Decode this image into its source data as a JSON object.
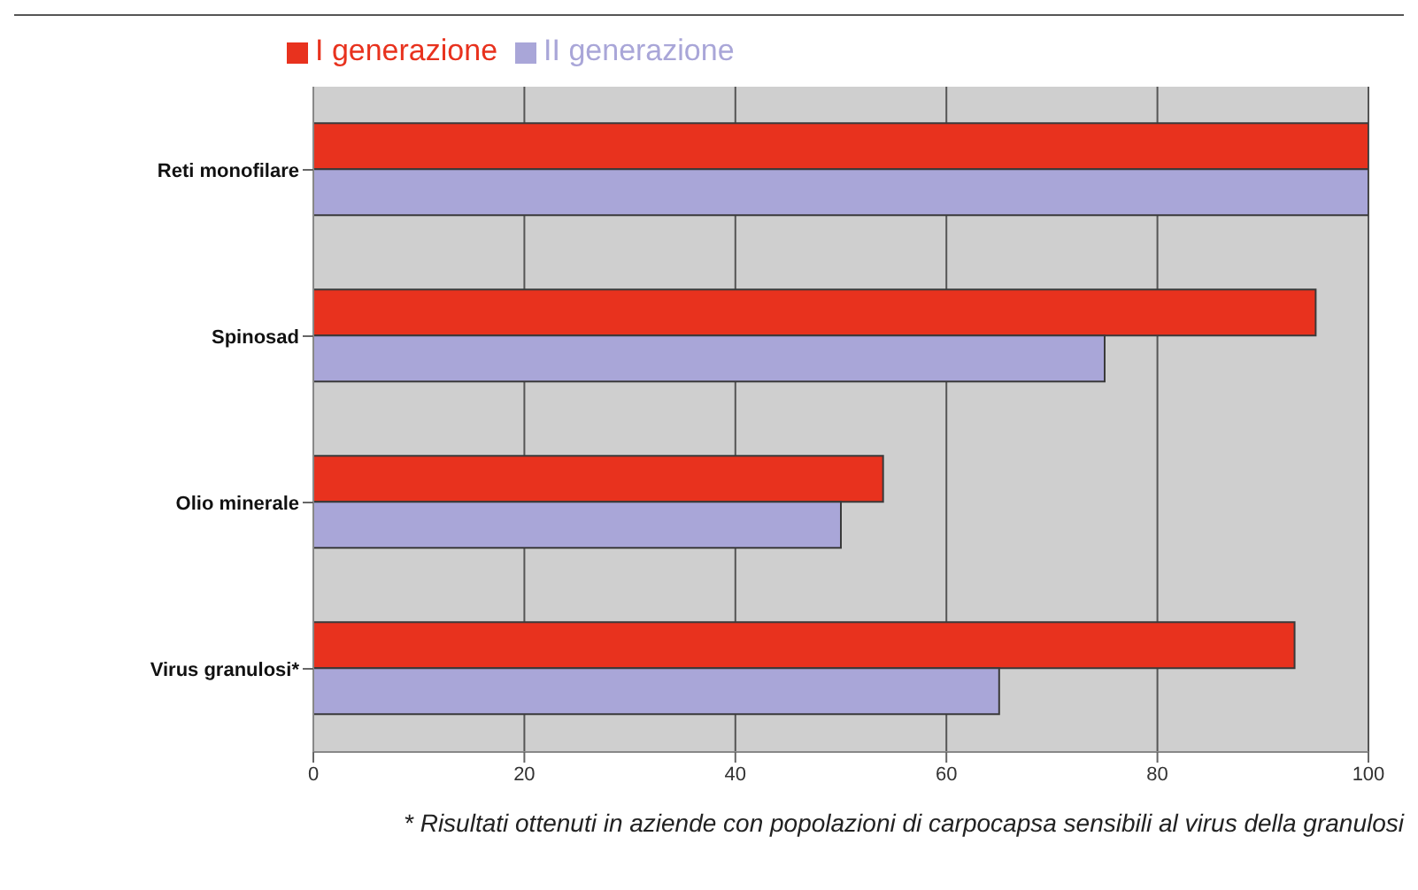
{
  "chart_data": {
    "type": "bar",
    "orientation": "horizontal",
    "categories": [
      "Reti monofilare",
      "Spinosad",
      "Olio minerale",
      "Virus granulosi*"
    ],
    "series": [
      {
        "name": "I generazione",
        "color": "#e8321e",
        "values": [
          100,
          95,
          54,
          93
        ]
      },
      {
        "name": "II generazione",
        "color": "#a9a6d8",
        "values": [
          100,
          75,
          50,
          65
        ]
      }
    ],
    "xlim": [
      0,
      100
    ],
    "xticks": [
      0,
      20,
      40,
      60,
      80,
      100
    ],
    "grid": "x",
    "legend": "top left",
    "annotations": [
      "* Risultati ottenuti in aziende con popolazioni di carpocapsa sensibili al virus della granulosi"
    ]
  }
}
